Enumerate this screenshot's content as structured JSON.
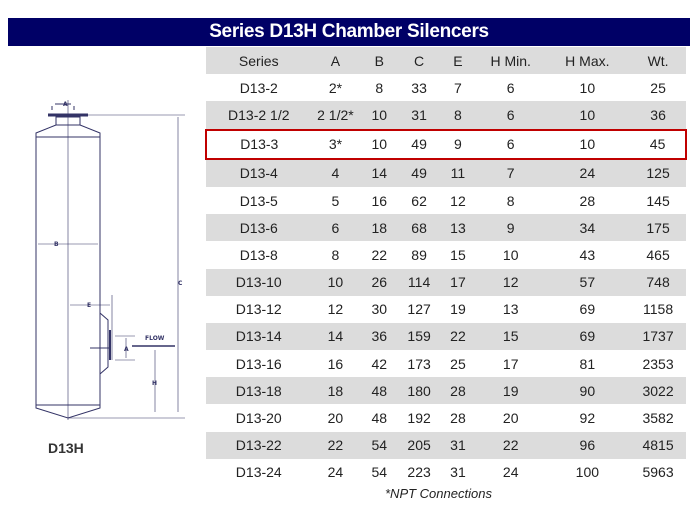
{
  "title": "Series D13H Chamber Silencers",
  "columns": [
    "Series",
    "A",
    "B",
    "C",
    "E",
    "H Min.",
    "H Max.",
    "Wt."
  ],
  "rows": [
    [
      "D13-2",
      "2*",
      "8",
      "33",
      "7",
      "6",
      "10",
      "25"
    ],
    [
      "D13-2 1/2",
      "2 1/2*",
      "10",
      "31",
      "8",
      "6",
      "10",
      "36"
    ],
    [
      "D13-3",
      "3*",
      "10",
      "49",
      "9",
      "6",
      "10",
      "45"
    ],
    [
      "D13-4",
      "4",
      "14",
      "49",
      "11",
      "7",
      "24",
      "125"
    ],
    [
      "D13-5",
      "5",
      "16",
      "62",
      "12",
      "8",
      "28",
      "145"
    ],
    [
      "D13-6",
      "6",
      "18",
      "68",
      "13",
      "9",
      "34",
      "175"
    ],
    [
      "D13-8",
      "8",
      "22",
      "89",
      "15",
      "10",
      "43",
      "465"
    ],
    [
      "D13-10",
      "10",
      "26",
      "114",
      "17",
      "12",
      "57",
      "748"
    ],
    [
      "D13-12",
      "12",
      "30",
      "127",
      "19",
      "13",
      "69",
      "1158"
    ],
    [
      "D13-14",
      "14",
      "36",
      "159",
      "22",
      "15",
      "69",
      "1737"
    ],
    [
      "D13-16",
      "16",
      "42",
      "173",
      "25",
      "17",
      "81",
      "2353"
    ],
    [
      "D13-18",
      "18",
      "48",
      "180",
      "28",
      "19",
      "90",
      "3022"
    ],
    [
      "D13-20",
      "20",
      "48",
      "192",
      "28",
      "20",
      "92",
      "3582"
    ],
    [
      "D13-22",
      "22",
      "54",
      "205",
      "31",
      "22",
      "96",
      "4815"
    ],
    [
      "D13-24",
      "24",
      "54",
      "223",
      "31",
      "24",
      "100",
      "5963"
    ]
  ],
  "highlighted_row": "D13-3",
  "highlight_color": "#c00000",
  "header_color": "#000066",
  "footnote": "*NPT Connections",
  "diagram": {
    "label": "D13H",
    "dims": {
      "a": "A",
      "b": "B",
      "c": "C",
      "e": "E",
      "h": "H",
      "flow": "FLOW"
    }
  }
}
